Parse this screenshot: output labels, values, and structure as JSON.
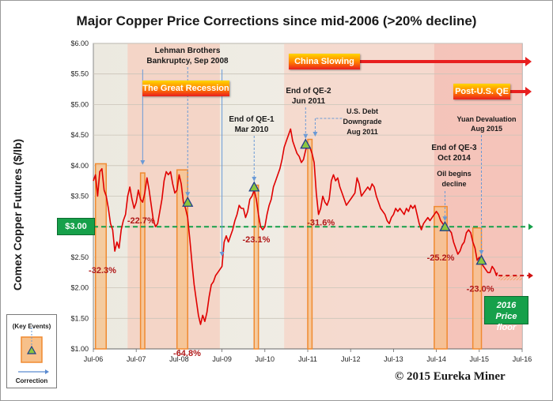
{
  "chart_data": {
    "type": "line",
    "title": "Major Copper Price Corrections since mid-2006 (>20% decline)",
    "ylabel": "Comex Copper Futures ($/lb)",
    "xlabel": "",
    "ylim": [
      1.0,
      6.0
    ],
    "y_ticks": [
      "$1.00",
      "$1.50",
      "$2.00",
      "$2.50",
      "$3.00",
      "$3.50",
      "$4.00",
      "$4.50",
      "$5.00",
      "$5.50",
      "$6.00"
    ],
    "y_tick_values": [
      1.0,
      1.5,
      2.0,
      2.5,
      3.0,
      3.5,
      4.0,
      4.5,
      5.0,
      5.5,
      6.0
    ],
    "x_ticks": [
      "Jul-06",
      "Jul-07",
      "Jul-08",
      "Jul-09",
      "Jul-10",
      "Jul-11",
      "Jul-12",
      "Jul-13",
      "Jul-14",
      "Jul-15",
      "Jul-16"
    ],
    "x_tick_values": [
      2006.5,
      2007.5,
      2008.5,
      2009.5,
      2010.5,
      2011.5,
      2012.5,
      2013.5,
      2014.5,
      2015.5,
      2016.5
    ],
    "xlim": [
      2006.5,
      2016.5
    ],
    "series": [
      {
        "name": "Comex Copper Futures",
        "color": "#e00000",
        "points": [
          [
            2006.5,
            3.75
          ],
          [
            2006.55,
            3.85
          ],
          [
            2006.6,
            3.5
          ],
          [
            2006.65,
            3.9
          ],
          [
            2006.7,
            3.95
          ],
          [
            2006.75,
            3.6
          ],
          [
            2006.8,
            3.5
          ],
          [
            2006.85,
            3.3
          ],
          [
            2006.9,
            3.05
          ],
          [
            2006.95,
            2.95
          ],
          [
            2007.0,
            2.6
          ],
          [
            2007.05,
            2.75
          ],
          [
            2007.1,
            2.65
          ],
          [
            2007.15,
            2.95
          ],
          [
            2007.2,
            3.1
          ],
          [
            2007.25,
            3.2
          ],
          [
            2007.3,
            3.5
          ],
          [
            2007.35,
            3.65
          ],
          [
            2007.4,
            3.45
          ],
          [
            2007.45,
            3.3
          ],
          [
            2007.5,
            3.4
          ],
          [
            2007.55,
            3.6
          ],
          [
            2007.6,
            3.45
          ],
          [
            2007.65,
            3.4
          ],
          [
            2007.7,
            3.55
          ],
          [
            2007.75,
            3.8
          ],
          [
            2007.8,
            3.6
          ],
          [
            2007.85,
            3.35
          ],
          [
            2007.9,
            3.1
          ],
          [
            2007.95,
            3.0
          ],
          [
            2008.0,
            3.05
          ],
          [
            2008.05,
            3.25
          ],
          [
            2008.1,
            3.45
          ],
          [
            2008.15,
            3.75
          ],
          [
            2008.2,
            3.9
          ],
          [
            2008.25,
            3.85
          ],
          [
            2008.3,
            3.9
          ],
          [
            2008.35,
            3.7
          ],
          [
            2008.4,
            3.55
          ],
          [
            2008.45,
            3.6
          ],
          [
            2008.5,
            3.85
          ],
          [
            2008.55,
            3.7
          ],
          [
            2008.6,
            3.4
          ],
          [
            2008.65,
            3.3
          ],
          [
            2008.7,
            3.15
          ],
          [
            2008.75,
            2.8
          ],
          [
            2008.8,
            2.4
          ],
          [
            2008.85,
            2.05
          ],
          [
            2008.9,
            1.8
          ],
          [
            2008.95,
            1.55
          ],
          [
            2009.0,
            1.4
          ],
          [
            2009.05,
            1.55
          ],
          [
            2009.1,
            1.45
          ],
          [
            2009.15,
            1.6
          ],
          [
            2009.2,
            1.85
          ],
          [
            2009.25,
            2.05
          ],
          [
            2009.3,
            2.1
          ],
          [
            2009.35,
            2.2
          ],
          [
            2009.4,
            2.25
          ],
          [
            2009.45,
            2.3
          ],
          [
            2009.5,
            2.35
          ],
          [
            2009.55,
            2.75
          ],
          [
            2009.6,
            2.85
          ],
          [
            2009.65,
            2.75
          ],
          [
            2009.7,
            2.85
          ],
          [
            2009.75,
            2.95
          ],
          [
            2009.8,
            3.1
          ],
          [
            2009.85,
            3.2
          ],
          [
            2009.9,
            3.35
          ],
          [
            2009.95,
            3.3
          ],
          [
            2010.0,
            3.3
          ],
          [
            2010.05,
            3.15
          ],
          [
            2010.1,
            3.25
          ],
          [
            2010.15,
            3.45
          ],
          [
            2010.2,
            3.5
          ],
          [
            2010.25,
            3.6
          ],
          [
            2010.3,
            3.45
          ],
          [
            2010.35,
            3.2
          ],
          [
            2010.4,
            3.0
          ],
          [
            2010.45,
            2.95
          ],
          [
            2010.5,
            3.0
          ],
          [
            2010.55,
            3.2
          ],
          [
            2010.6,
            3.35
          ],
          [
            2010.65,
            3.45
          ],
          [
            2010.7,
            3.65
          ],
          [
            2010.75,
            3.75
          ],
          [
            2010.8,
            3.85
          ],
          [
            2010.85,
            3.95
          ],
          [
            2010.9,
            4.1
          ],
          [
            2010.95,
            4.3
          ],
          [
            2011.0,
            4.4
          ],
          [
            2011.05,
            4.5
          ],
          [
            2011.1,
            4.6
          ],
          [
            2011.15,
            4.4
          ],
          [
            2011.2,
            4.3
          ],
          [
            2011.25,
            4.2
          ],
          [
            2011.3,
            4.15
          ],
          [
            2011.35,
            4.05
          ],
          [
            2011.4,
            4.1
          ],
          [
            2011.45,
            4.25
          ],
          [
            2011.5,
            4.35
          ],
          [
            2011.55,
            4.3
          ],
          [
            2011.6,
            4.2
          ],
          [
            2011.65,
            4.05
          ],
          [
            2011.7,
            3.55
          ],
          [
            2011.75,
            3.2
          ],
          [
            2011.8,
            3.3
          ],
          [
            2011.85,
            3.5
          ],
          [
            2011.9,
            3.4
          ],
          [
            2011.95,
            3.35
          ],
          [
            2012.0,
            3.45
          ],
          [
            2012.05,
            3.75
          ],
          [
            2012.1,
            3.85
          ],
          [
            2012.15,
            3.75
          ],
          [
            2012.2,
            3.8
          ],
          [
            2012.25,
            3.65
          ],
          [
            2012.3,
            3.55
          ],
          [
            2012.35,
            3.45
          ],
          [
            2012.4,
            3.35
          ],
          [
            2012.45,
            3.4
          ],
          [
            2012.5,
            3.45
          ],
          [
            2012.55,
            3.5
          ],
          [
            2012.6,
            3.55
          ],
          [
            2012.65,
            3.8
          ],
          [
            2012.7,
            3.7
          ],
          [
            2012.75,
            3.5
          ],
          [
            2012.8,
            3.55
          ],
          [
            2012.85,
            3.6
          ],
          [
            2012.9,
            3.65
          ],
          [
            2012.95,
            3.6
          ],
          [
            2013.0,
            3.7
          ],
          [
            2013.05,
            3.65
          ],
          [
            2013.1,
            3.5
          ],
          [
            2013.15,
            3.4
          ],
          [
            2013.2,
            3.3
          ],
          [
            2013.25,
            3.25
          ],
          [
            2013.3,
            3.2
          ],
          [
            2013.35,
            3.1
          ],
          [
            2013.4,
            3.05
          ],
          [
            2013.45,
            3.15
          ],
          [
            2013.5,
            3.2
          ],
          [
            2013.55,
            3.3
          ],
          [
            2013.6,
            3.25
          ],
          [
            2013.65,
            3.3
          ],
          [
            2013.7,
            3.25
          ],
          [
            2013.75,
            3.2
          ],
          [
            2013.8,
            3.3
          ],
          [
            2013.85,
            3.25
          ],
          [
            2013.9,
            3.35
          ],
          [
            2013.95,
            3.3
          ],
          [
            2014.0,
            3.35
          ],
          [
            2014.05,
            3.2
          ],
          [
            2014.1,
            3.05
          ],
          [
            2014.15,
            2.95
          ],
          [
            2014.2,
            3.05
          ],
          [
            2014.25,
            3.1
          ],
          [
            2014.3,
            3.15
          ],
          [
            2014.35,
            3.1
          ],
          [
            2014.4,
            3.15
          ],
          [
            2014.45,
            3.2
          ],
          [
            2014.5,
            3.25
          ],
          [
            2014.55,
            3.2
          ],
          [
            2014.6,
            3.1
          ],
          [
            2014.65,
            3.05
          ],
          [
            2014.7,
            3.0
          ],
          [
            2014.75,
            3.0
          ],
          [
            2014.8,
            2.95
          ],
          [
            2014.85,
            2.9
          ],
          [
            2014.9,
            2.75
          ],
          [
            2014.95,
            2.65
          ],
          [
            2015.0,
            2.55
          ],
          [
            2015.05,
            2.6
          ],
          [
            2015.1,
            2.7
          ],
          [
            2015.15,
            2.75
          ],
          [
            2015.2,
            2.9
          ],
          [
            2015.25,
            2.95
          ],
          [
            2015.3,
            2.9
          ],
          [
            2015.35,
            2.75
          ],
          [
            2015.4,
            2.65
          ],
          [
            2015.45,
            2.45
          ],
          [
            2015.5,
            2.5
          ],
          [
            2015.55,
            2.4
          ],
          [
            2015.6,
            2.35
          ],
          [
            2015.65,
            2.3
          ],
          [
            2015.7,
            2.25
          ],
          [
            2015.75,
            2.25
          ],
          [
            2015.8,
            2.35
          ],
          [
            2015.85,
            2.3
          ],
          [
            2015.9,
            2.2
          ],
          [
            2015.92,
            2.25
          ]
        ]
      }
    ],
    "correction_boxes": [
      {
        "start": 2006.55,
        "end": 2006.8,
        "label": "-32.3%"
      },
      {
        "start": 2007.6,
        "end": 2007.7,
        "label": "-22.7%"
      },
      {
        "start": 2008.45,
        "end": 2008.7,
        "label": "-64.8%"
      },
      {
        "start": 2010.25,
        "end": 2010.35,
        "label": "-23.1%"
      },
      {
        "start": 2011.5,
        "end": 2011.6,
        "label": "-31.6%"
      },
      {
        "start": 2014.45,
        "end": 2014.75,
        "label": "-25.2%"
      },
      {
        "start": 2015.35,
        "end": 2015.55,
        "label": "-23.0%"
      }
    ],
    "reference_line": {
      "value": 3.0,
      "label": "$3.00"
    },
    "future_floor": {
      "label": "2016 Price floor",
      "value": 2.2
    }
  },
  "banners": {
    "great_recession": "The Great Recession",
    "china_slowing": "China Slowing",
    "post_qe": "Post-U.S. QE"
  },
  "annotations": {
    "lehman": [
      "Lehman Brothers",
      "Bankruptcy, Sep 2008"
    ],
    "qe1": [
      "End of QE-1",
      "Mar 2010"
    ],
    "qe2": [
      "End of QE-2",
      "Jun 2011"
    ],
    "us_debt": [
      "U.S. Debt",
      "Downgrade",
      "Aug 2011"
    ],
    "qe3": [
      "End of QE-3",
      "Oct 2014"
    ],
    "oil": [
      "Oil begins",
      "decline"
    ],
    "yuan": [
      "Yuan Devaluation",
      "Aug 2015"
    ]
  },
  "legend": {
    "key_events": "(Key Events)",
    "correction": "Correction"
  },
  "floor_label": [
    "2016 Price",
    "floor"
  ],
  "copyright": "© 2015 Eureka Miner",
  "colors": {
    "line": "#e00000",
    "correction_fill": "#f7c08a",
    "correction_stroke": "#f08a30",
    "shade": "#f7c8b9",
    "ref_green": "#16a04a",
    "pct_red": "#b01818"
  }
}
